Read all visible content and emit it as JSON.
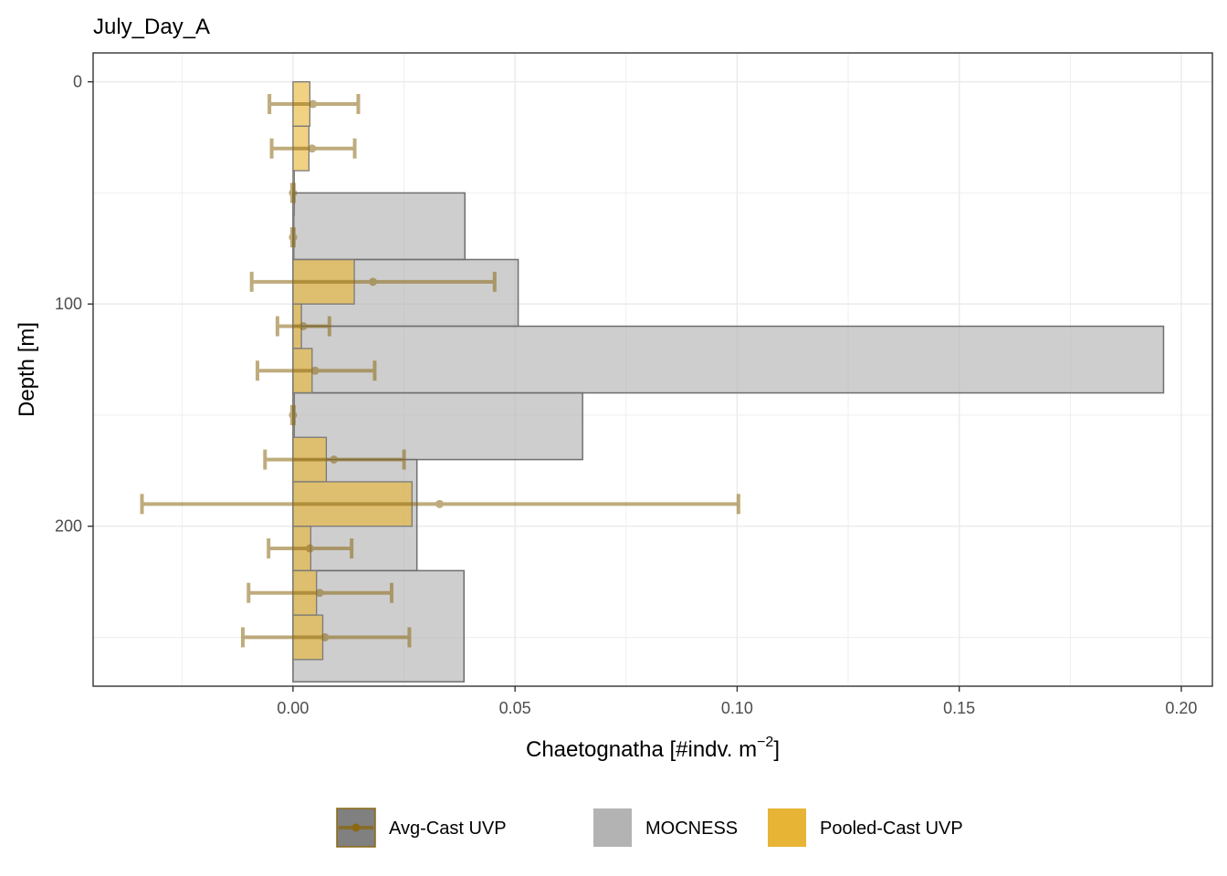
{
  "chart_data": {
    "type": "bar",
    "orientation": "horizontal",
    "title": "July_Day_A",
    "xlabel": "Chaetognatha [#indv. m",
    "xlabel_superscript": "−2",
    "xlabel_suffix": "]",
    "ylabel": "Depth [m]",
    "xlim": [
      -0.045,
      0.207
    ],
    "ylim": [
      272,
      -13
    ],
    "y_reversed": true,
    "grid": true,
    "x_ticks": [
      {
        "value": 0.0,
        "label": "0.00"
      },
      {
        "value": 0.05,
        "label": "0.05"
      },
      {
        "value": 0.1,
        "label": "0.10"
      },
      {
        "value": 0.15,
        "label": "0.15"
      },
      {
        "value": 0.2,
        "label": "0.20"
      }
    ],
    "x_minor_ticks": [
      -0.025,
      0.025,
      0.075,
      0.125,
      0.175
    ],
    "y_ticks": [
      {
        "value": 0,
        "label": "0"
      },
      {
        "value": 100,
        "label": "100"
      },
      {
        "value": 200,
        "label": "200"
      }
    ],
    "y_minor_ticks": [
      50,
      150,
      250
    ],
    "series": [
      {
        "name": "MOCNESS",
        "kind": "bar",
        "color": "#b3b3b3",
        "bars": [
          {
            "depth_top": 50,
            "depth_bottom": 80,
            "value": 0.0387
          },
          {
            "depth_top": 80,
            "depth_bottom": 110,
            "value": 0.0507
          },
          {
            "depth_top": 110,
            "depth_bottom": 140,
            "value": 0.196
          },
          {
            "depth_top": 140,
            "depth_bottom": 170,
            "value": 0.0652
          },
          {
            "depth_top": 170,
            "depth_bottom": 220,
            "value": 0.0279
          },
          {
            "depth_top": 220,
            "depth_bottom": 270,
            "value": 0.0385
          }
        ]
      },
      {
        "name": "Pooled-Cast UVP",
        "kind": "bar",
        "color": "#e8b436",
        "bars": [
          {
            "depth_top": 0,
            "depth_bottom": 20,
            "value": 0.0038
          },
          {
            "depth_top": 20,
            "depth_bottom": 40,
            "value": 0.0036
          },
          {
            "depth_top": 40,
            "depth_bottom": 60,
            "value": 0.0003
          },
          {
            "depth_top": 60,
            "depth_bottom": 80,
            "value": 0.0002
          },
          {
            "depth_top": 80,
            "depth_bottom": 100,
            "value": 0.0138
          },
          {
            "depth_top": 100,
            "depth_bottom": 120,
            "value": 0.0019
          },
          {
            "depth_top": 120,
            "depth_bottom": 140,
            "value": 0.0043
          },
          {
            "depth_top": 140,
            "depth_bottom": 160,
            "value": 0.0003
          },
          {
            "depth_top": 160,
            "depth_bottom": 180,
            "value": 0.0075
          },
          {
            "depth_top": 180,
            "depth_bottom": 200,
            "value": 0.0268
          },
          {
            "depth_top": 200,
            "depth_bottom": 220,
            "value": 0.004
          },
          {
            "depth_top": 220,
            "depth_bottom": 240,
            "value": 0.0053
          },
          {
            "depth_top": 240,
            "depth_bottom": 260,
            "value": 0.0067
          }
        ]
      },
      {
        "name": "Avg-Cast UVP",
        "kind": "point_errorbar",
        "color": "#8b6914",
        "points": [
          {
            "depth": 10,
            "mean": 0.0045,
            "lower": -0.0053,
            "upper": 0.0147
          },
          {
            "depth": 30,
            "mean": 0.0043,
            "lower": -0.0048,
            "upper": 0.0139
          },
          {
            "depth": 50,
            "mean": 0.0,
            "lower": -0.0002,
            "upper": 0.0002
          },
          {
            "depth": 70,
            "mean": 0.0,
            "lower": -0.0002,
            "upper": 0.0002
          },
          {
            "depth": 90,
            "mean": 0.018,
            "lower": -0.0093,
            "upper": 0.0454
          },
          {
            "depth": 110,
            "mean": 0.0023,
            "lower": -0.0035,
            "upper": 0.0082
          },
          {
            "depth": 130,
            "mean": 0.005,
            "lower": -0.008,
            "upper": 0.0184
          },
          {
            "depth": 150,
            "mean": 0.0,
            "lower": -0.0002,
            "upper": 0.0002
          },
          {
            "depth": 170,
            "mean": 0.0092,
            "lower": -0.0063,
            "upper": 0.025
          },
          {
            "depth": 190,
            "mean": 0.033,
            "lower": -0.034,
            "upper": 0.1003
          },
          {
            "depth": 210,
            "mean": 0.0038,
            "lower": -0.0055,
            "upper": 0.0132
          },
          {
            "depth": 230,
            "mean": 0.006,
            "lower": -0.01,
            "upper": 0.0222
          },
          {
            "depth": 250,
            "mean": 0.0072,
            "lower": -0.0113,
            "upper": 0.0262
          }
        ]
      }
    ],
    "legend": {
      "position": "bottom",
      "items": [
        {
          "label": "Avg-Cast UVP",
          "fill": "#808080",
          "border": "#8b6914",
          "glyph": "point-line"
        },
        {
          "label": "MOCNESS",
          "fill": "#b3b3b3",
          "border": "#b3b3b3",
          "glyph": "box"
        },
        {
          "label": "Pooled-Cast UVP",
          "fill": "#e8b436",
          "border": "#e8b436",
          "glyph": "box"
        }
      ]
    }
  }
}
